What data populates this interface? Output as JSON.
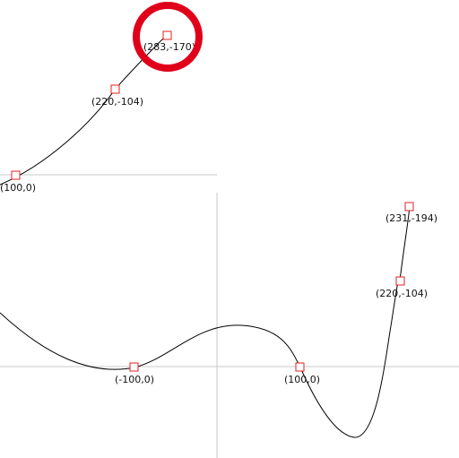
{
  "colors": {
    "background": "#ffffff",
    "axis": "#c8c8c8",
    "curve": "#000000",
    "handle": "#e02020",
    "highlight": "#e0001a",
    "label": "#111111"
  },
  "upper_panel": {
    "points": [
      {
        "id": "p1",
        "label": "(100,0)"
      },
      {
        "id": "p2",
        "label": "(220,-104)"
      },
      {
        "id": "p3",
        "label": "(283,-170)",
        "highlighted": true
      }
    ]
  },
  "lower_panel": {
    "points": [
      {
        "id": "q1",
        "label": "(-100,0)"
      },
      {
        "id": "q2",
        "label": "(100,0)"
      },
      {
        "id": "q3",
        "label": "(220,-104)"
      },
      {
        "id": "q4",
        "label": "(231,-194)"
      }
    ]
  }
}
